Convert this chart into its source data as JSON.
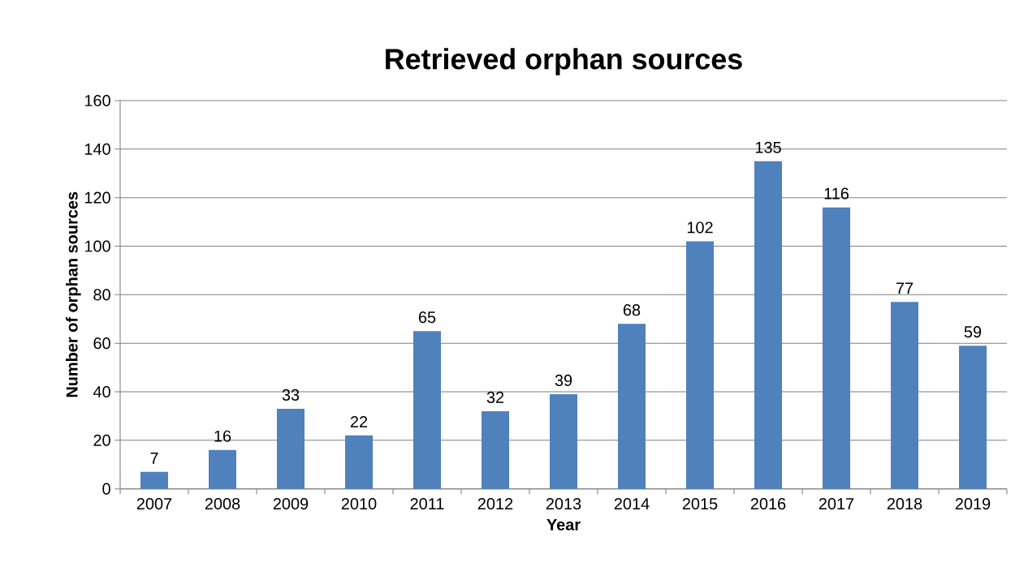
{
  "chart_data": {
    "type": "bar",
    "title": "Retrieved orphan sources",
    "xlabel": "Year",
    "ylabel": "Number of orphan sources",
    "categories": [
      "2007",
      "2008",
      "2009",
      "2010",
      "2011",
      "2012",
      "2013",
      "2014",
      "2015",
      "2016",
      "2017",
      "2018",
      "2019"
    ],
    "values": [
      7,
      16,
      33,
      22,
      65,
      32,
      39,
      68,
      102,
      135,
      116,
      77,
      59
    ],
    "color": "#4f81bd",
    "ylim": [
      0,
      160
    ],
    "yticks": [
      0,
      20,
      40,
      60,
      80,
      100,
      120,
      140,
      160
    ],
    "grid": "y",
    "data_labels": true
  }
}
